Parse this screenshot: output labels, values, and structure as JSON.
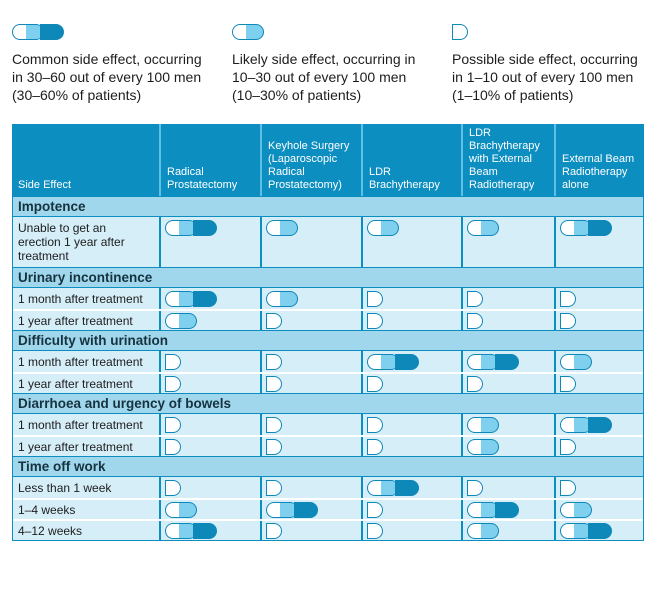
{
  "legend": [
    {
      "level": 3,
      "line1": "Common side effect, occurring",
      "line2": "in 30–60 out of every 100 men",
      "line3": "(30–60% of patients)"
    },
    {
      "level": 2,
      "line1": "Likely side effect, occurring in",
      "line2": "10–30 out of every 100 men",
      "line3": "(10–30% of patients)"
    },
    {
      "level": 1,
      "line1": "Possible side effect, occurring",
      "line2": "in 1–10 out of every 100 men",
      "line3": "(1–10% of patients)"
    }
  ],
  "headers": [
    "Side Effect",
    "Radical\nProstatectomy",
    "Keyhole Surgery\n(Laparoscopic\nRadical\nProstatectomy)",
    "LDR\nBrachytherapy",
    "LDR\nBrachytherapy\nwith External\nBeam\nRadiotherapy",
    "External Beam\nRadiotherapy\nalone"
  ],
  "sections": [
    {
      "title": "Impotence",
      "rows": [
        {
          "label": "Unable to get an\nerection 1 year after\ntreatment",
          "levels": [
            3,
            2,
            2,
            2,
            3
          ]
        }
      ]
    },
    {
      "title": "Urinary incontinence",
      "rows": [
        {
          "label": "1 month after treatment",
          "levels": [
            3,
            2,
            1,
            1,
            1
          ]
        },
        {
          "label": "1 year after treatment",
          "levels": [
            2,
            1,
            1,
            1,
            1
          ]
        }
      ]
    },
    {
      "title": "Difficulty with urination",
      "rows": [
        {
          "label": "1 month after treatment",
          "levels": [
            1,
            1,
            3,
            3,
            2
          ]
        },
        {
          "label": "1 year after treatment",
          "levels": [
            1,
            1,
            1,
            1,
            1
          ]
        }
      ]
    },
    {
      "title": "Diarrhoea and urgency of bowels",
      "rows": [
        {
          "label": "1 month after treatment",
          "levels": [
            1,
            1,
            1,
            2,
            3
          ]
        },
        {
          "label": "1 year after treatment",
          "levels": [
            1,
            1,
            1,
            2,
            1
          ]
        }
      ]
    },
    {
      "title": "Time off work",
      "rows": [
        {
          "label": "Less than 1 week",
          "levels": [
            1,
            1,
            3,
            1,
            1
          ]
        },
        {
          "label": "1–4 weeks",
          "levels": [
            2,
            3,
            1,
            3,
            2
          ]
        },
        {
          "label": "4–12 weeks",
          "levels": [
            3,
            1,
            1,
            2,
            3
          ]
        }
      ]
    }
  ],
  "colors": {
    "header_bg": "#0c8ec1",
    "section_bg": "#a0d7ec",
    "row_bg": "#d6eef8",
    "icon_dark": "#0e87b9",
    "icon_light": "#7ed0ee"
  }
}
